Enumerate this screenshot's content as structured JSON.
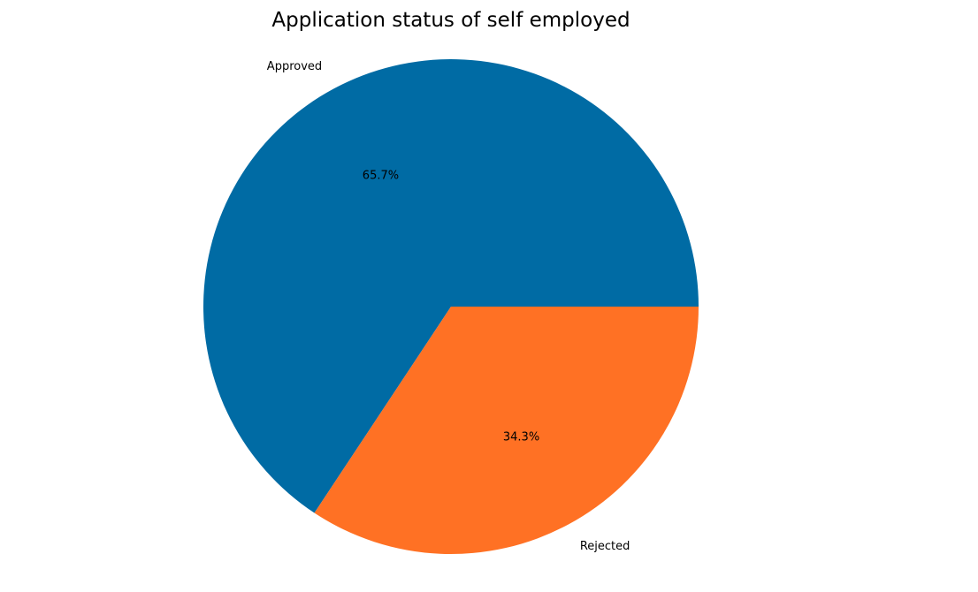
{
  "chart_data": {
    "type": "pie",
    "title": "Application status of self employed",
    "categories": [
      "Approved",
      "Rejected"
    ],
    "values": [
      65.7,
      34.3
    ],
    "percent_labels": [
      "65.7%",
      "34.3%"
    ],
    "colors": [
      "#006BA4",
      "#FF7124"
    ],
    "start_angle": "3 o'clock",
    "direction": "counterclockwise",
    "legend": "none"
  }
}
